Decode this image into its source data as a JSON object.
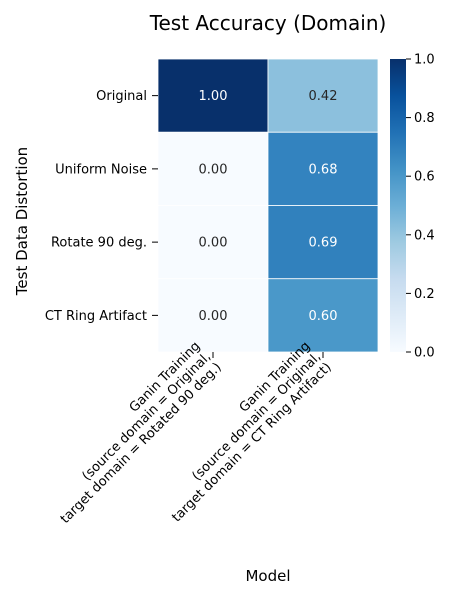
{
  "chart_data": {
    "type": "heatmap",
    "title": "Test Accuracy (Domain)",
    "xlabel": "Model",
    "ylabel": "Test Data Distortion",
    "rows": [
      "Original",
      "Uniform Noise",
      "Rotate 90 deg.",
      "CT Ring Artifact"
    ],
    "columns": [
      [
        "Ganin Training",
        "(source domain = Original,",
        "target domain = Rotated 90 deg.)"
      ],
      [
        "Ganin Training",
        "(source domain = Original,",
        "target domain = CT Ring Artifact)"
      ]
    ],
    "values": [
      [
        1.0,
        0.42
      ],
      [
        0.0,
        0.68
      ],
      [
        0.0,
        0.69
      ],
      [
        0.0,
        0.6
      ]
    ],
    "value_format": "2f",
    "vmin": 0.0,
    "vmax": 1.0,
    "colormap": "Blues",
    "colorbar_ticks": [
      "0.0",
      "0.2",
      "0.4",
      "0.6",
      "0.8",
      "1.0"
    ],
    "cell_border_color": "#ffffff",
    "grid": false
  }
}
